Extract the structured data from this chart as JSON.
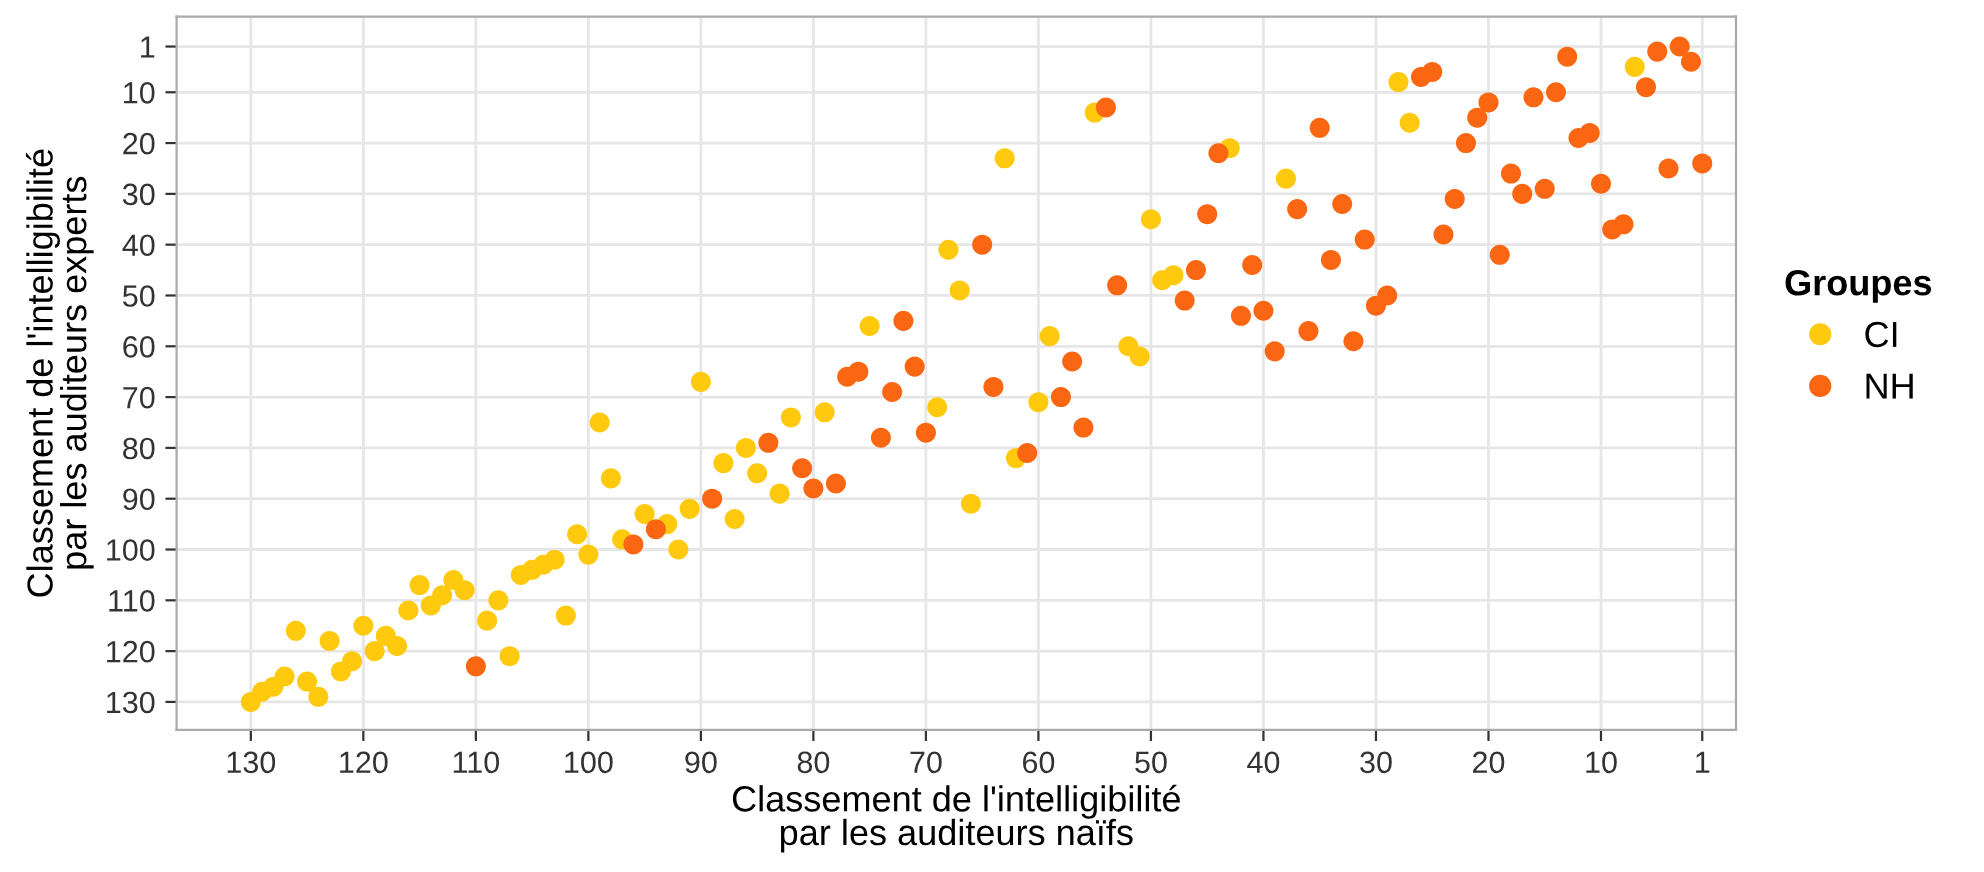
{
  "chart_data": {
    "type": "scatter",
    "xlabel": "Classement de l'intelligibilité\npar les auditeurs naïfs",
    "ylabel": "Classement de l'intelligibilité\npar les auditeurs experts",
    "legend_title": "Groupes",
    "legend": "right",
    "grid": true,
    "marker": "circle",
    "xlim": [
      136.6,
      -2
    ],
    "ylim": [
      135.5,
      -4.9
    ],
    "xticks": [
      130,
      120,
      110,
      100,
      90,
      80,
      70,
      60,
      50,
      40,
      30,
      20,
      10,
      1
    ],
    "yticks": [
      1,
      10,
      20,
      30,
      40,
      50,
      60,
      70,
      80,
      90,
      100,
      110,
      120,
      130
    ],
    "series": [
      {
        "name": "CI",
        "color": "#ffc90e",
        "x": [
          130,
          129,
          128,
          127,
          126,
          125,
          124,
          123,
          122,
          121,
          120,
          119,
          118,
          117,
          116,
          115,
          114,
          113,
          112,
          111,
          109,
          108,
          107,
          106,
          105,
          104,
          103,
          102,
          101,
          100,
          99,
          98,
          97,
          95,
          93,
          92,
          91,
          90,
          88,
          87,
          86,
          85,
          83,
          82,
          79,
          75,
          69,
          68,
          67,
          66,
          63,
          62,
          60,
          59,
          55,
          52,
          51,
          50,
          49,
          48,
          43,
          38,
          28,
          27,
          7
        ],
        "values": [
          130,
          128,
          127,
          125,
          116,
          126,
          129,
          118,
          124,
          122,
          115,
          120,
          117,
          119,
          112,
          107,
          111,
          109,
          106,
          108,
          114,
          110,
          121,
          105,
          104,
          103,
          102,
          113,
          97,
          101,
          75,
          86,
          98,
          93,
          95,
          100,
          92,
          67,
          83,
          94,
          80,
          85,
          89,
          74,
          73,
          56,
          72,
          41,
          49,
          91,
          23,
          82,
          71,
          58,
          14,
          60,
          62,
          35,
          47,
          46,
          21,
          27,
          8,
          16,
          5
        ]
      },
      {
        "name": "NH",
        "color": "#fb6612",
        "x": [
          110,
          96,
          94,
          89,
          84,
          81,
          80,
          78,
          77,
          76,
          74,
          73,
          72,
          71,
          70,
          65,
          64,
          61,
          58,
          57,
          56,
          54,
          53,
          47,
          46,
          45,
          44,
          42,
          41,
          40,
          39,
          37,
          36,
          35,
          34,
          33,
          32,
          31,
          30,
          29,
          26,
          25,
          24,
          23,
          22,
          21,
          20,
          19,
          18,
          17,
          16,
          15,
          14,
          13,
          12,
          11,
          10,
          9,
          8,
          6,
          5,
          4,
          3,
          2,
          1
        ],
        "values": [
          123,
          99,
          96,
          90,
          79,
          84,
          88,
          87,
          66,
          65,
          78,
          69,
          55,
          64,
          77,
          40,
          68,
          81,
          70,
          63,
          76,
          13,
          48,
          51,
          45,
          34,
          22,
          54,
          44,
          53,
          61,
          33,
          57,
          17,
          43,
          32,
          59,
          39,
          52,
          50,
          7,
          6,
          38,
          31,
          20,
          15,
          12,
          42,
          26,
          30,
          11,
          29,
          10,
          3,
          19,
          18,
          28,
          37,
          36,
          9,
          2,
          25,
          1,
          4,
          24
        ]
      }
    ]
  }
}
